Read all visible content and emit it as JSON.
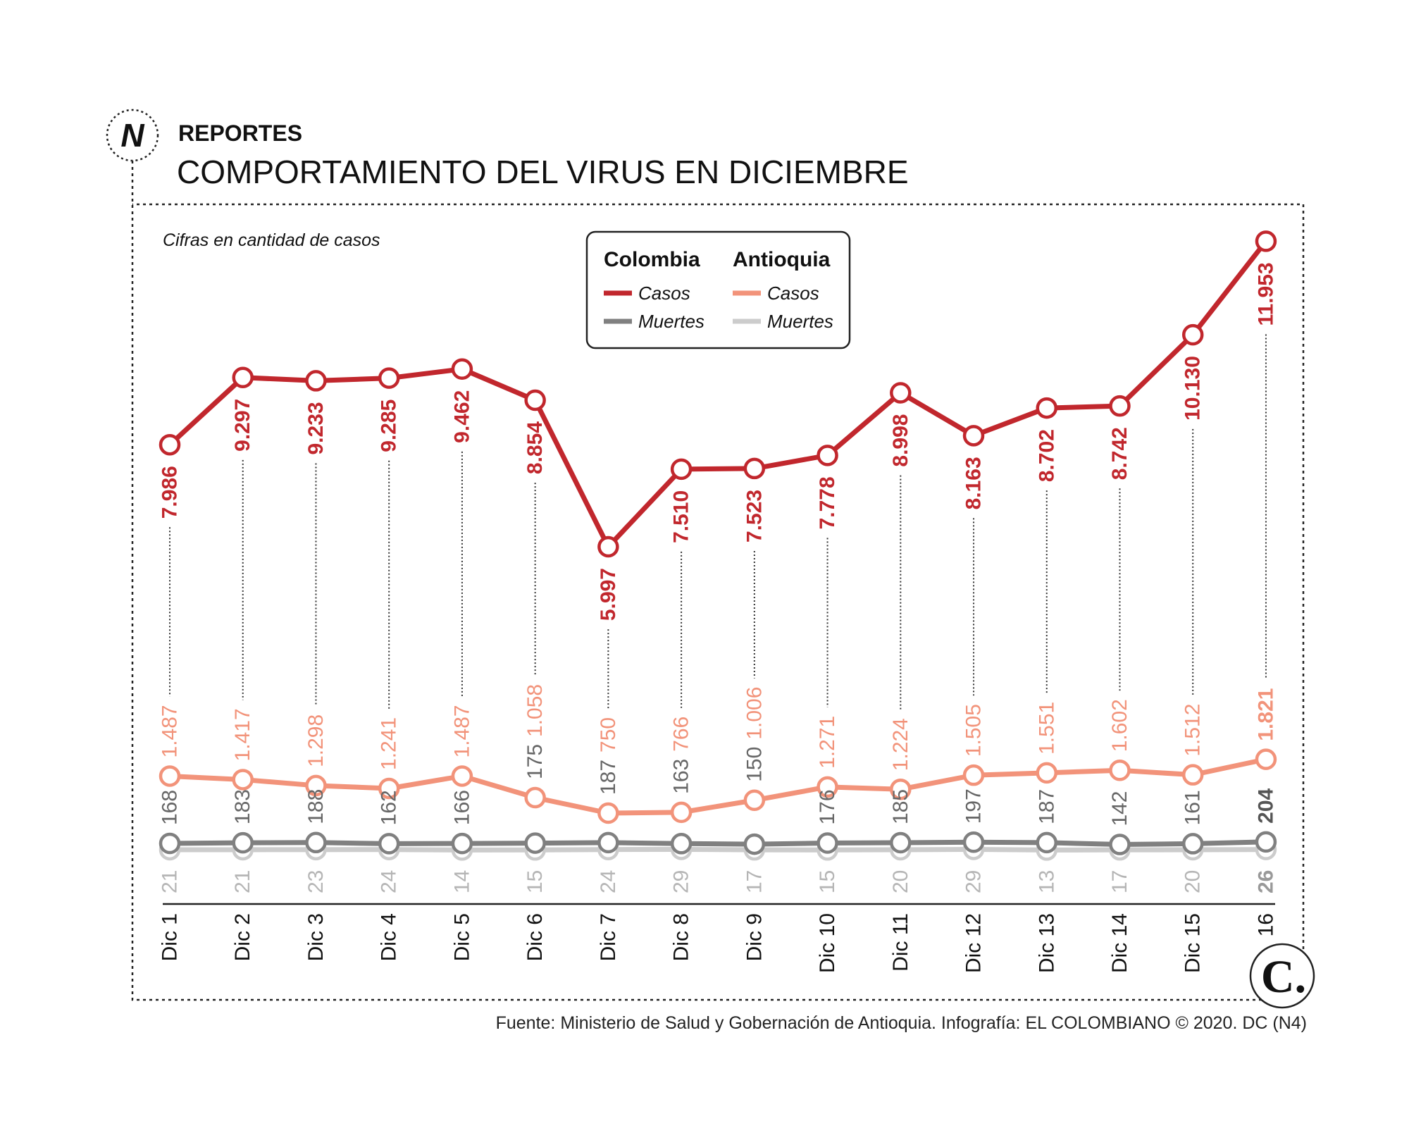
{
  "header": {
    "logo_letter": "N",
    "section": "REPORTES",
    "title": "COMPORTAMIENTO DEL VIRUS EN DICIEMBRE"
  },
  "note": "Cifras en cantidad de casos",
  "legend": {
    "groups": [
      {
        "title": "Colombia",
        "items": [
          {
            "label": "Casos",
            "color": "#c1272d"
          },
          {
            "label": "Muertes",
            "color": "#808080"
          }
        ]
      },
      {
        "title": "Antioquia",
        "items": [
          {
            "label": "Casos",
            "color": "#f2937a"
          },
          {
            "label": "Muertes",
            "color": "#cccccc"
          }
        ]
      }
    ]
  },
  "source": "Fuente: Ministerio de Salud y Gobernación de Antioquia. Infografía: EL COLOMBIANO © 2020. DC (N4)",
  "brand_logo": "C.",
  "chart_data": {
    "type": "line",
    "title": "COMPORTAMIENTO DEL VIRUS EN DICIEMBRE",
    "subtitle": "Cifras en cantidad de casos",
    "categories": [
      "Dic 1",
      "Dic 2",
      "Dic 3",
      "Dic 4",
      "Dic 5",
      "Dic 6",
      "Dic 7",
      "Dic 8",
      "Dic 9",
      "Dic 10",
      "Dic 11",
      "Dic 12",
      "Dic 13",
      "Dic 14",
      "Dic 15",
      "16"
    ],
    "legend_position": "top-center",
    "grid": false,
    "series": [
      {
        "name": "Colombia Casos",
        "color": "#c1272d",
        "values": [
          7986,
          9297,
          9233,
          9285,
          9462,
          8854,
          5997,
          7510,
          7523,
          7778,
          8998,
          8163,
          8702,
          8742,
          10130,
          11953
        ],
        "labels": [
          "7.986",
          "9.297",
          "9.233",
          "9.285",
          "9.462",
          "8.854",
          "5.997",
          "7.510",
          "7.523",
          "7.778",
          "8.998",
          "8.163",
          "8.702",
          "8.742",
          "10.130",
          "11.953"
        ]
      },
      {
        "name": "Antioquia Casos",
        "color": "#f2937a",
        "values": [
          1487,
          1417,
          1298,
          1241,
          1487,
          1058,
          750,
          766,
          1006,
          1271,
          1224,
          1505,
          1551,
          1602,
          1512,
          1821
        ],
        "labels": [
          "1.487",
          "1.417",
          "1.298",
          "1.241",
          "1.487",
          "1.058",
          "750",
          "766",
          "1.006",
          "1.271",
          "1.224",
          "1.505",
          "1.551",
          "1.602",
          "1.512",
          "1.821"
        ]
      },
      {
        "name": "Colombia Muertes",
        "color": "#808080",
        "values": [
          168,
          183,
          188,
          162,
          166,
          175,
          187,
          163,
          150,
          176,
          185,
          197,
          187,
          142,
          161,
          204
        ],
        "labels": [
          "168",
          "183",
          "188",
          "162",
          "166",
          "175",
          "187",
          "163",
          "150",
          "176",
          "185",
          "197",
          "187",
          "142",
          "161",
          "204"
        ]
      },
      {
        "name": "Antioquia Muertes",
        "color": "#cccccc",
        "values": [
          21,
          21,
          23,
          24,
          14,
          15,
          24,
          29,
          17,
          15,
          20,
          29,
          13,
          17,
          20,
          26
        ],
        "labels": [
          "21",
          "21",
          "23",
          "24",
          "14",
          "15",
          "24",
          "29",
          "17",
          "15",
          "20",
          "29",
          "13",
          "17",
          "20",
          "26"
        ]
      }
    ]
  }
}
